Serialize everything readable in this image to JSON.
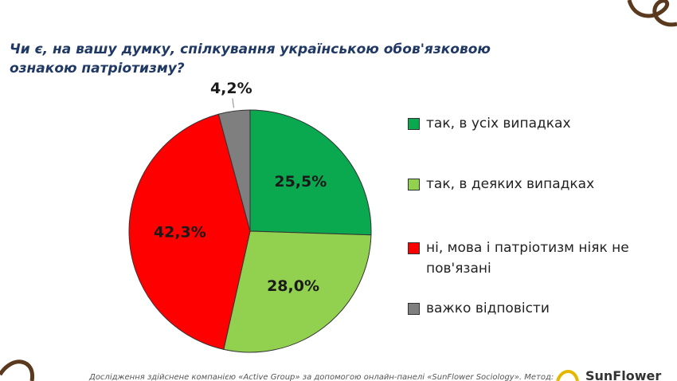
{
  "chart_data": {
    "type": "pie",
    "title": "Чи є, на вашу думку, спілкування українською обов'язковою ознакою патріотизму?",
    "categories": [
      "так, в усіх випадках",
      "так, в деяких випадках",
      "ні, мова і патріотизм ніяк не пов'язані",
      "важко відповісти"
    ],
    "values": [
      25.5,
      28.0,
      42.3,
      4.2
    ],
    "value_labels": [
      "25,5%",
      "28,0%",
      "42,3%",
      "4,2%"
    ],
    "colors": [
      "#0aa84f",
      "#92d050",
      "#ff0000",
      "#7f7f7f"
    ]
  },
  "footer": "Дослідження здійснене компанією «Active Group» за допомогою онлайн-панелі «SunFlower Sociology». Метод:",
  "logo": "SunFlower"
}
